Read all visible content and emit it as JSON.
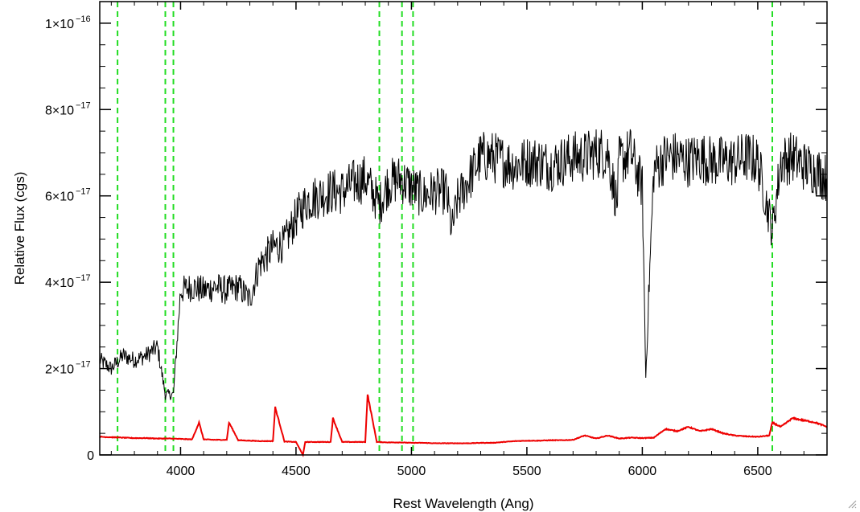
{
  "chart_data": {
    "type": "line",
    "title": "",
    "xlabel": "Rest Wavelength (Ang)",
    "ylabel": "Relative Flux (cgs)",
    "xlim": [
      3650,
      6800
    ],
    "ylim": [
      0,
      1.05e-16
    ],
    "xticks": [
      4000,
      4500,
      5000,
      5500,
      6000,
      6500
    ],
    "xtick_labels": [
      "4000",
      "4500",
      "5000",
      "5500",
      "6000",
      "6500"
    ],
    "yticks": [
      0,
      2e-17,
      4e-17,
      6e-17,
      8e-17,
      1e-16
    ],
    "ytick_labels": [
      {
        "mantissa": "0",
        "exponent": ""
      },
      {
        "mantissa": "2×10",
        "exponent": "−17"
      },
      {
        "mantissa": "4×10",
        "exponent": "−17"
      },
      {
        "mantissa": "6×10",
        "exponent": "−17"
      },
      {
        "mantissa": "8×10",
        "exponent": "−17"
      },
      {
        "mantissa": "1×10",
        "exponent": "−16"
      }
    ],
    "vlines": {
      "color": "#22dd22",
      "style": "dashed",
      "x": [
        3727,
        3934,
        3969,
        4861,
        4959,
        5007,
        6563
      ]
    },
    "series": [
      {
        "color": "#000000",
        "x": [
          3650,
          3700,
          3750,
          3800,
          3850,
          3900,
          3934,
          3969,
          4000,
          4050,
          4100,
          4150,
          4200,
          4250,
          4300,
          4340,
          4400,
          4450,
          4500,
          4550,
          4600,
          4650,
          4700,
          4750,
          4800,
          4861,
          4900,
          4950,
          5000,
          5050,
          5100,
          5150,
          5175,
          5200,
          5250,
          5300,
          5350,
          5400,
          5450,
          5500,
          5550,
          5600,
          5650,
          5700,
          5750,
          5800,
          5850,
          5890,
          5900,
          5950,
          6000,
          6015,
          6030,
          6050,
          6100,
          6150,
          6200,
          6250,
          6300,
          6350,
          6400,
          6450,
          6500,
          6563,
          6600,
          6650,
          6700,
          6750,
          6800
        ],
        "y": [
          2.2e-17,
          2e-17,
          2.3e-17,
          2.2e-17,
          2.3e-17,
          2.5e-17,
          1.4e-17,
          1.4e-17,
          3.8e-17,
          3.9e-17,
          3.8e-17,
          3.9e-17,
          3.8e-17,
          3.9e-17,
          3.6e-17,
          4.4e-17,
          4.8e-17,
          4.9e-17,
          5.5e-17,
          5.9e-17,
          6e-17,
          6.1e-17,
          6.1e-17,
          6.3e-17,
          6.4e-17,
          5.8e-17,
          6.3e-17,
          6.4e-17,
          6.2e-17,
          6e-17,
          6.1e-17,
          6.1e-17,
          5.2e-17,
          5.9e-17,
          6.4e-17,
          6.9e-17,
          6.9e-17,
          6.8e-17,
          6.7e-17,
          6.8e-17,
          6.8e-17,
          6.7e-17,
          6.8e-17,
          6.9e-17,
          6.9e-17,
          7e-17,
          7e-17,
          5.8e-17,
          6.8e-17,
          7e-17,
          6.2e-17,
          1.8e-17,
          4e-17,
          6.6e-17,
          6.9e-17,
          6.9e-17,
          6.8e-17,
          6.9e-17,
          6.8e-17,
          6.8e-17,
          6.8e-17,
          6.9e-17,
          6.8e-17,
          5.2e-17,
          6.8e-17,
          6.9e-17,
          6.7e-17,
          6.6e-17,
          6.4e-17
        ]
      },
      {
        "color": "#ee0000",
        "x": [
          3650,
          3700,
          3750,
          3800,
          3850,
          3900,
          3950,
          4000,
          4050,
          4080,
          4100,
          4150,
          4200,
          4210,
          4250,
          4300,
          4350,
          4400,
          4410,
          4450,
          4500,
          4530,
          4540,
          4550,
          4600,
          4650,
          4660,
          4700,
          4750,
          4800,
          4810,
          4850,
          4900,
          4950,
          5000,
          5050,
          5100,
          5150,
          5200,
          5250,
          5300,
          5350,
          5400,
          5450,
          5500,
          5550,
          5600,
          5650,
          5700,
          5750,
          5800,
          5850,
          5900,
          5950,
          6000,
          6050,
          6100,
          6150,
          6200,
          6250,
          6300,
          6350,
          6400,
          6450,
          6500,
          6550,
          6563,
          6600,
          6650,
          6700,
          6750,
          6800
        ],
        "y": [
          4.2e-18,
          4.1e-18,
          4e-18,
          3.9e-18,
          3.9e-18,
          3.8e-18,
          3.8e-18,
          3.7e-18,
          3.6e-18,
          7.5e-18,
          3.6e-18,
          3.5e-18,
          3.5e-18,
          7.5e-18,
          3.4e-18,
          3.3e-18,
          3.2e-18,
          3.2e-18,
          1.1e-17,
          3.1e-18,
          3e-18,
          0,
          3e-18,
          3e-18,
          3e-18,
          3e-18,
          8.5e-18,
          3e-18,
          3e-18,
          3e-18,
          1.4e-17,
          3e-18,
          2.9e-18,
          2.9e-18,
          2.8e-18,
          2.8e-18,
          2.7e-18,
          2.7e-18,
          2.7e-18,
          2.7e-18,
          2.8e-18,
          2.8e-18,
          3e-18,
          3.2e-18,
          3.3e-18,
          3.3e-18,
          3.4e-18,
          3.4e-18,
          3.5e-18,
          4.5e-18,
          3.8e-18,
          4.5e-18,
          3.8e-18,
          4e-18,
          3.9e-18,
          4e-18,
          6e-18,
          5.5e-18,
          6.5e-18,
          5.5e-18,
          6e-18,
          5e-18,
          4.5e-18,
          4.3e-18,
          4.2e-18,
          4.5e-18,
          7.5e-18,
          6.5e-18,
          8.5e-18,
          8e-18,
          7.5e-18,
          6.5e-18
        ]
      }
    ],
    "grid": false,
    "legend": "none"
  }
}
